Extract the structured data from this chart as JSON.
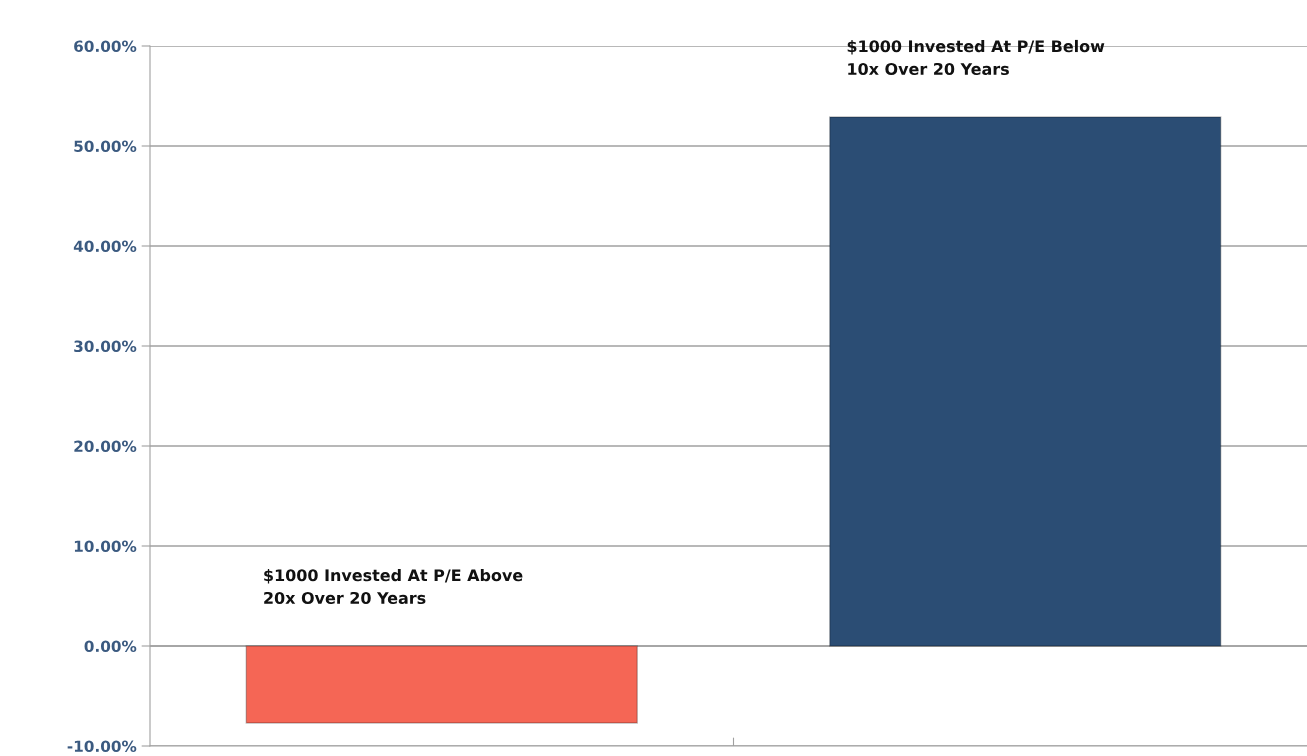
{
  "chart_data": {
    "type": "bar",
    "categories": [
      "$1000 Invested At P/E Above\n20x Over 20 Years",
      "$1000 Invested At P/E Below\n10x Over 20 Years"
    ],
    "values": [
      -7.7,
      52.9
    ],
    "colors": [
      "#f56655",
      "#2b4d74"
    ],
    "ylim": [
      -10,
      60
    ],
    "yticks": [
      {
        "value": -10,
        "label": "-10.00%"
      },
      {
        "value": 0,
        "label": "0.00%"
      },
      {
        "value": 10,
        "label": "10.00%"
      },
      {
        "value": 20,
        "label": "20.00%"
      },
      {
        "value": 30,
        "label": "30.00%"
      },
      {
        "value": 40,
        "label": "40.00%"
      },
      {
        "value": 50,
        "label": "50.00%"
      },
      {
        "value": 60,
        "label": "60.00%"
      }
    ],
    "grid": "y",
    "tick_labels": "y"
  }
}
